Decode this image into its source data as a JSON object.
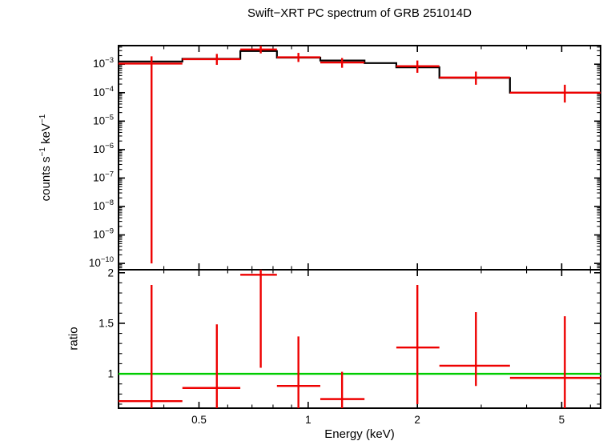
{
  "chart_data": {
    "type": "line",
    "title": "Swift−XRT PC spectrum of GRB 251014D",
    "xlabel": "Energy (keV)",
    "x_scale": "log",
    "xlim": [
      0.3,
      6.4
    ],
    "x_ticks": [
      0.5,
      1,
      2,
      5
    ],
    "x_tick_labels": [
      "0.5",
      "1",
      "2",
      "5"
    ],
    "legend": "none",
    "grid": "off",
    "colors": {
      "model": "#000000",
      "data": "#ee0000",
      "reference": "#00cc00",
      "frame": "#000000",
      "background": "#ffffff"
    },
    "panels": [
      {
        "name": "spectrum",
        "ylabel": "counts s⁻¹ keV⁻¹",
        "ylabel_parts": [
          {
            "t": "counts s"
          },
          {
            "s": "−1"
          },
          {
            "t": " keV"
          },
          {
            "s": "−1"
          }
        ],
        "y_scale": "log",
        "ylim": [
          6e-11,
          0.0045
        ],
        "y_tick_exponents": [
          -3,
          -4,
          -5,
          -6,
          -7,
          -8,
          -9,
          -10
        ],
        "model_bins": [
          {
            "e_lo": 0.3,
            "e_hi": 0.45,
            "y": 0.00125
          },
          {
            "e_lo": 0.45,
            "e_hi": 0.65,
            "y": 0.00155
          },
          {
            "e_lo": 0.65,
            "e_hi": 0.82,
            "y": 0.0029
          },
          {
            "e_lo": 0.82,
            "e_hi": 1.08,
            "y": 0.0017
          },
          {
            "e_lo": 1.08,
            "e_hi": 1.43,
            "y": 0.00135
          },
          {
            "e_lo": 1.43,
            "e_hi": 1.75,
            "y": 0.0011
          },
          {
            "e_lo": 1.75,
            "e_hi": 2.3,
            "y": 0.00078
          },
          {
            "e_lo": 2.3,
            "e_hi": 3.6,
            "y": 0.00033
          },
          {
            "e_lo": 3.6,
            "e_hi": 6.4,
            "y": 0.0001
          }
        ],
        "points": [
          {
            "e": 0.37,
            "e_lo": 0.3,
            "e_hi": 0.45,
            "y": 0.00105,
            "y_lo": 1e-10,
            "y_hi": 0.0019
          },
          {
            "e": 0.56,
            "e_lo": 0.45,
            "e_hi": 0.65,
            "y": 0.0015,
            "y_lo": 0.00095,
            "y_hi": 0.0023
          },
          {
            "e": 0.74,
            "e_lo": 0.65,
            "e_hi": 0.82,
            "y": 0.0033,
            "y_lo": 0.0024,
            "y_hi": 0.0044
          },
          {
            "e": 0.94,
            "e_lo": 0.82,
            "e_hi": 1.08,
            "y": 0.00175,
            "y_lo": 0.0012,
            "y_hi": 0.0025
          },
          {
            "e": 1.24,
            "e_lo": 1.08,
            "e_hi": 1.43,
            "y": 0.00115,
            "y_lo": 0.00075,
            "y_hi": 0.00165
          },
          {
            "e": 2.0,
            "e_lo": 1.75,
            "e_hi": 2.3,
            "y": 0.00085,
            "y_lo": 0.0005,
            "y_hi": 0.00135
          },
          {
            "e": 2.9,
            "e_lo": 2.3,
            "e_hi": 3.6,
            "y": 0.00034,
            "y_lo": 0.00019,
            "y_hi": 0.00055
          },
          {
            "e": 5.1,
            "e_lo": 3.6,
            "e_hi": 6.4,
            "y": 0.0001,
            "y_lo": 4.5e-05,
            "y_hi": 0.00019
          }
        ]
      },
      {
        "name": "ratio",
        "ylabel": "ratio",
        "y_scale": "linear",
        "ylim": [
          0.66,
          2.03
        ],
        "y_ticks": [
          1,
          1.5,
          2
        ],
        "y_tick_labels": [
          "1",
          "1.5",
          "2"
        ],
        "reference_line": 1,
        "points": [
          {
            "e": 0.37,
            "e_lo": 0.3,
            "e_hi": 0.45,
            "y": 0.73,
            "y_lo": 0.6,
            "y_hi": 1.88
          },
          {
            "e": 0.56,
            "e_lo": 0.45,
            "e_hi": 0.65,
            "y": 0.86,
            "y_lo": 0.6,
            "y_hi": 1.49
          },
          {
            "e": 0.74,
            "e_lo": 0.65,
            "e_hi": 0.82,
            "y": 1.98,
            "y_lo": 1.06,
            "y_hi": 2.03
          },
          {
            "e": 0.94,
            "e_lo": 0.82,
            "e_hi": 1.08,
            "y": 0.88,
            "y_lo": 0.6,
            "y_hi": 1.37
          },
          {
            "e": 1.24,
            "e_lo": 1.08,
            "e_hi": 1.43,
            "y": 0.75,
            "y_lo": 0.6,
            "y_hi": 1.02
          },
          {
            "e": 2.0,
            "e_lo": 1.75,
            "e_hi": 2.3,
            "y": 1.26,
            "y_lo": 0.7,
            "y_hi": 1.88
          },
          {
            "e": 2.9,
            "e_lo": 2.3,
            "e_hi": 3.6,
            "y": 1.08,
            "y_lo": 0.88,
            "y_hi": 1.61
          },
          {
            "e": 5.1,
            "e_lo": 3.6,
            "e_hi": 6.4,
            "y": 0.96,
            "y_lo": 0.6,
            "y_hi": 1.57
          }
        ]
      }
    ]
  }
}
